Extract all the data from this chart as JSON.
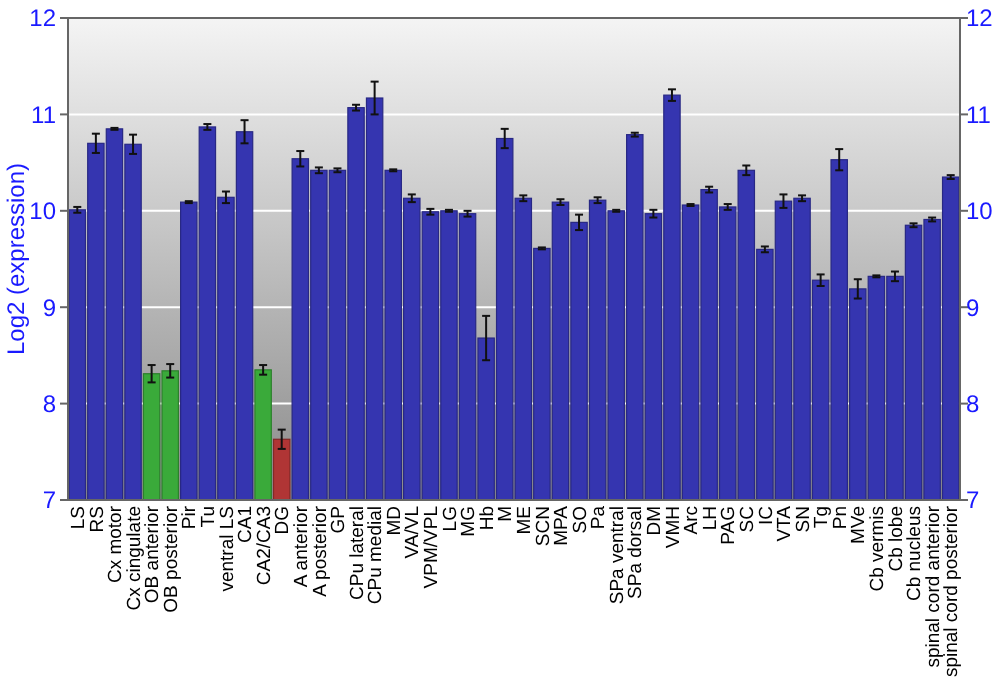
{
  "chart_data": {
    "type": "bar",
    "ylabel": "Log2 (expression)",
    "categories": [
      "LS",
      "RS",
      "Cx motor",
      "Cx cingulate",
      "OB anterior",
      "OB posterior",
      "Pir",
      "Tu",
      "ventral LS",
      "CA1",
      "CA2/CA3",
      "DG",
      "A anterior",
      "A posterior",
      "GP",
      "CPu lateral",
      "CPu medial",
      "MD",
      "VA/VL",
      "VPM/VPL",
      "LG",
      "MG",
      "Hb",
      "M",
      "ME",
      "SCN",
      "MPA",
      "SO",
      "Pa",
      "SPa ventral",
      "SPa dorsal",
      "DM",
      "VMH",
      "Arc",
      "LH",
      "PAG",
      "SC",
      "IC",
      "VTA",
      "SN",
      "Tg",
      "Pn",
      "MVe",
      "Cb vermis",
      "Cb lobe",
      "Cb nucleus",
      "spinal cord anterior",
      "spinal cord posterior"
    ],
    "values": [
      10.01,
      10.7,
      10.85,
      10.69,
      8.31,
      8.34,
      10.09,
      10.87,
      10.14,
      10.82,
      8.35,
      7.63,
      10.54,
      10.42,
      10.42,
      11.07,
      11.17,
      10.42,
      10.13,
      9.99,
      10.0,
      9.97,
      8.68,
      10.75,
      10.13,
      9.61,
      10.09,
      9.88,
      10.11,
      10.0,
      10.79,
      9.97,
      11.2,
      10.06,
      10.22,
      10.04,
      10.42,
      9.6,
      10.1,
      10.13,
      9.28,
      10.53,
      9.19,
      9.32,
      9.32,
      9.85,
      9.91,
      10.35
    ],
    "errors": [
      0.03,
      0.1,
      0.01,
      0.1,
      0.09,
      0.07,
      0.01,
      0.03,
      0.06,
      0.12,
      0.05,
      0.1,
      0.08,
      0.03,
      0.02,
      0.03,
      0.17,
      0.01,
      0.04,
      0.03,
      0.01,
      0.03,
      0.23,
      0.1,
      0.03,
      0.01,
      0.03,
      0.08,
      0.03,
      0.01,
      0.02,
      0.04,
      0.06,
      0.01,
      0.03,
      0.03,
      0.05,
      0.03,
      0.07,
      0.03,
      0.06,
      0.11,
      0.1,
      0.01,
      0.05,
      0.02,
      0.02,
      0.02
    ],
    "colors": [
      "#3535b0",
      "#3535b0",
      "#3535b0",
      "#3535b0",
      "#3aaa3a",
      "#3aaa3a",
      "#3535b0",
      "#3535b0",
      "#3535b0",
      "#3535b0",
      "#3aaa3a",
      "#b03535",
      "#3535b0",
      "#3535b0",
      "#3535b0",
      "#3535b0",
      "#3535b0",
      "#3535b0",
      "#3535b0",
      "#3535b0",
      "#3535b0",
      "#3535b0",
      "#3535b0",
      "#3535b0",
      "#3535b0",
      "#3535b0",
      "#3535b0",
      "#3535b0",
      "#3535b0",
      "#3535b0",
      "#3535b0",
      "#3535b0",
      "#3535b0",
      "#3535b0",
      "#3535b0",
      "#3535b0",
      "#3535b0",
      "#3535b0",
      "#3535b0",
      "#3535b0",
      "#3535b0",
      "#3535b0",
      "#3535b0",
      "#3535b0",
      "#3535b0",
      "#3535b0",
      "#3535b0",
      "#3535b0"
    ],
    "ylim": [
      7,
      12
    ],
    "yticks": [
      7,
      8,
      9,
      10,
      11,
      12
    ],
    "y2lim": [
      7,
      12
    ],
    "y2ticks": [
      7,
      8,
      9,
      10,
      11,
      12
    ],
    "grid": "y"
  }
}
